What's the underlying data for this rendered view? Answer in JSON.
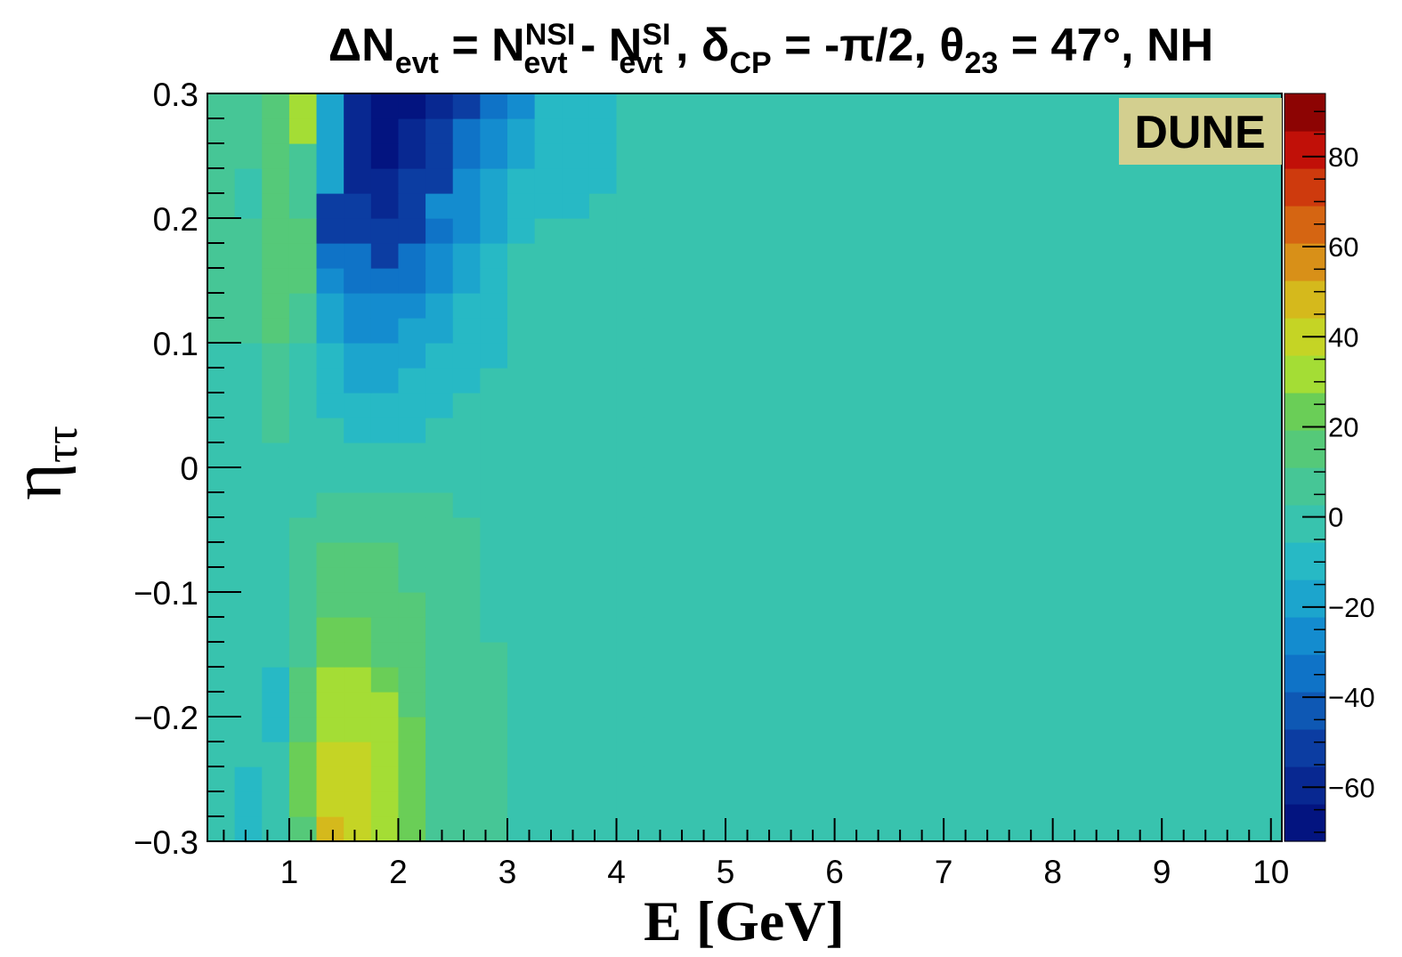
{
  "chart_data": {
    "type": "heatmap",
    "title": {
      "parts": [
        {
          "t": "ΔN",
          "s": "n"
        },
        {
          "t": "evt",
          "s": "sub"
        },
        {
          "t": " = N",
          "s": "n"
        },
        {
          "t": "NSI",
          "s": "sup"
        },
        {
          "t": "evt",
          "s": "subs"
        },
        {
          "t": " - N",
          "s": "n"
        },
        {
          "t": "SI",
          "s": "sup"
        },
        {
          "t": "evt",
          "s": "subs"
        },
        {
          "t": " ,  δ",
          "s": "n"
        },
        {
          "t": "CP",
          "s": "sub"
        },
        {
          "t": " = -π/2,  θ",
          "s": "n"
        },
        {
          "t": "23",
          "s": "sub"
        },
        {
          "t": " = 47°, NH",
          "s": "n"
        }
      ]
    },
    "xlabel": "E [GeV]",
    "ylabel": "η",
    "ylabel_sub": "ττ",
    "label_box": "DUNE",
    "xlim": [
      0.25,
      10.1
    ],
    "ylim": [
      -0.3,
      0.3
    ],
    "x_ticks": [
      1,
      2,
      3,
      4,
      5,
      6,
      7,
      8,
      9,
      10
    ],
    "x_tick_labels": [
      "1",
      "2",
      "3",
      "4",
      "5",
      "6",
      "7",
      "8",
      "9",
      "10"
    ],
    "y_ticks": [
      -0.3,
      -0.2,
      -0.1,
      0,
      0.1,
      0.2,
      0.3
    ],
    "y_tick_labels": [
      "−0.3",
      "−0.2",
      "−0.1",
      "0",
      "0.1",
      "0.2",
      "0.3"
    ],
    "colorbar_range": [
      -72,
      94
    ],
    "colorbar_ticks": [
      -60,
      -40,
      -20,
      0,
      20,
      40,
      60,
      80
    ],
    "colorbar_tick_labels": [
      "−60",
      "−40",
      "−20",
      "0",
      "20",
      "40",
      "60",
      "80"
    ],
    "background_value": 0,
    "x_edges": [
      0.25,
      0.5,
      0.75,
      1.0,
      1.25,
      1.5,
      1.75,
      2.0,
      2.25,
      2.5,
      2.75,
      3.0,
      3.25,
      3.5,
      3.75,
      4.0,
      4.25
    ],
    "y_edges": [
      -0.3,
      -0.28,
      -0.26,
      -0.24,
      -0.22,
      -0.2,
      -0.18,
      -0.16,
      -0.14,
      -0.12,
      -0.1,
      -0.08,
      -0.06,
      -0.04,
      -0.02,
      0.0,
      0.02,
      0.04,
      0.06,
      0.08,
      0.1,
      0.12,
      0.14,
      0.16,
      0.18,
      0.2,
      0.22,
      0.24,
      0.26,
      0.28,
      0.3
    ],
    "z": [
      [
        2,
        -8,
        2,
        12,
        48,
        44,
        28,
        22,
        8,
        8,
        8,
        0,
        0,
        0,
        0,
        0
      ],
      [
        2,
        -8,
        2,
        22,
        42,
        40,
        28,
        22,
        8,
        8,
        8,
        0,
        0,
        0,
        0,
        0
      ],
      [
        2,
        -8,
        2,
        22,
        42,
        40,
        28,
        22,
        8,
        8,
        8,
        0,
        0,
        0,
        0,
        0
      ],
      [
        2,
        2,
        2,
        22,
        42,
        38,
        28,
        22,
        8,
        8,
        8,
        0,
        0,
        0,
        0,
        0
      ],
      [
        2,
        2,
        -8,
        18,
        32,
        32,
        28,
        22,
        8,
        8,
        8,
        0,
        0,
        0,
        0,
        0
      ],
      [
        2,
        2,
        -8,
        12,
        32,
        32,
        28,
        18,
        8,
        8,
        8,
        0,
        0,
        0,
        0,
        0
      ],
      [
        2,
        2,
        -8,
        12,
        28,
        28,
        22,
        18,
        8,
        8,
        8,
        0,
        0,
        0,
        0,
        0
      ],
      [
        2,
        2,
        2,
        8,
        22,
        22,
        18,
        12,
        8,
        8,
        8,
        0,
        0,
        0,
        0,
        0
      ],
      [
        2,
        2,
        2,
        8,
        22,
        22,
        18,
        12,
        8,
        8,
        2,
        0,
        0,
        0,
        0,
        0
      ],
      [
        2,
        2,
        2,
        8,
        18,
        18,
        12,
        12,
        8,
        8,
        2,
        0,
        0,
        0,
        0,
        0
      ],
      [
        2,
        2,
        2,
        8,
        12,
        12,
        12,
        8,
        8,
        8,
        2,
        0,
        0,
        0,
        0,
        0
      ],
      [
        2,
        2,
        2,
        8,
        12,
        12,
        12,
        8,
        8,
        8,
        2,
        0,
        0,
        0,
        0,
        0
      ],
      [
        2,
        2,
        2,
        8,
        8,
        8,
        8,
        8,
        8,
        8,
        2,
        0,
        0,
        0,
        0,
        0
      ],
      [
        2,
        2,
        2,
        2,
        8,
        8,
        8,
        8,
        8,
        2,
        2,
        0,
        0,
        0,
        0,
        0
      ],
      [
        2,
        2,
        2,
        2,
        2,
        2,
        2,
        2,
        2,
        2,
        0,
        0,
        0,
        0,
        0,
        0
      ],
      [
        2,
        2,
        2,
        2,
        2,
        2,
        2,
        2,
        2,
        2,
        0,
        0,
        0,
        0,
        0,
        0
      ],
      [
        2,
        2,
        8,
        2,
        -2,
        -8,
        -8,
        -8,
        -2,
        -2,
        0,
        0,
        0,
        0,
        0,
        0
      ],
      [
        2,
        2,
        8,
        2,
        -8,
        -8,
        -8,
        -8,
        -8,
        -2,
        0,
        0,
        0,
        0,
        0,
        0
      ],
      [
        2,
        2,
        8,
        2,
        -8,
        -18,
        -18,
        -8,
        -8,
        -8,
        -2,
        0,
        0,
        0,
        0,
        0
      ],
      [
        2,
        2,
        8,
        2,
        -8,
        -18,
        -18,
        -18,
        -8,
        -8,
        -8,
        0,
        0,
        0,
        0,
        0
      ],
      [
        8,
        8,
        18,
        8,
        -18,
        -28,
        -28,
        -18,
        -18,
        -8,
        -8,
        0,
        0,
        0,
        0,
        0
      ],
      [
        8,
        8,
        18,
        8,
        -18,
        -28,
        -28,
        -28,
        -18,
        -8,
        -8,
        -2,
        0,
        0,
        0,
        0
      ],
      [
        8,
        8,
        18,
        18,
        -28,
        -38,
        -38,
        -38,
        -28,
        -18,
        -8,
        -2,
        0,
        0,
        0,
        0
      ],
      [
        8,
        8,
        18,
        18,
        -38,
        -38,
        -48,
        -38,
        -28,
        -18,
        -8,
        -2,
        0,
        0,
        0,
        0
      ],
      [
        8,
        8,
        18,
        18,
        -48,
        -52,
        -48,
        -48,
        -38,
        -28,
        -18,
        -8,
        -2,
        0,
        0,
        0
      ],
      [
        8,
        2,
        18,
        8,
        -48,
        -52,
        -58,
        -48,
        -28,
        -28,
        -18,
        -8,
        -8,
        -8,
        0,
        0
      ],
      [
        8,
        2,
        18,
        8,
        -18,
        -58,
        -58,
        -52,
        -48,
        -28,
        -18,
        -8,
        -8,
        -8,
        -8,
        0
      ],
      [
        8,
        8,
        18,
        8,
        -18,
        -62,
        -68,
        -58,
        -48,
        -38,
        -28,
        -18,
        -8,
        -8,
        -8,
        0
      ],
      [
        8,
        8,
        18,
        28,
        -18,
        -62,
        -72,
        -58,
        -48,
        -38,
        -28,
        -18,
        -8,
        -8,
        -8,
        0
      ],
      [
        8,
        8,
        18,
        28,
        -18,
        -58,
        -72,
        -72,
        -58,
        -48,
        -38,
        -28,
        -8,
        -8,
        -8,
        0
      ]
    ]
  },
  "colors": {
    "palette_note": "kRainBow-like",
    "background_cell": "#4cc78a",
    "label_box_fill": "#d3cf8f"
  }
}
